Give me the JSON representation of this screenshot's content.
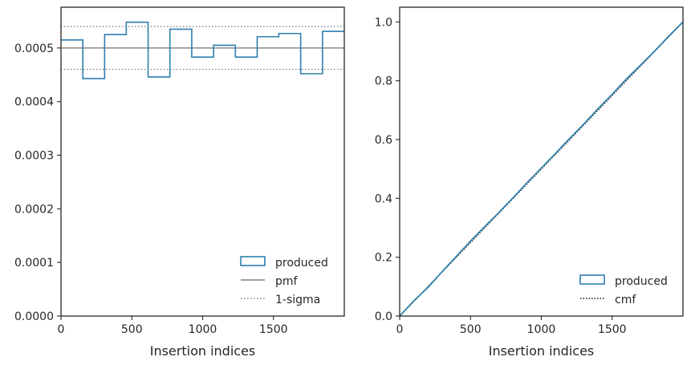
{
  "colors": {
    "produced": "#2f7fb0",
    "pmf": "#808080",
    "sigma": "#808080",
    "cmf": "#1a1a1a",
    "axis": "#262626"
  },
  "chart_data": [
    {
      "type": "histogram-step",
      "xlabel": "Insertion indices",
      "ylabel": "",
      "title": "",
      "xlim": [
        0,
        2000
      ],
      "ylim": [
        0,
        0.000576
      ],
      "xticks": [
        0,
        500,
        1000,
        1500
      ],
      "xtick_labels": [
        "0",
        "500",
        "1000",
        "1500"
      ],
      "yticks": [
        0,
        0.0001,
        0.0002,
        0.0003,
        0.0004,
        0.0005
      ],
      "ytick_labels": [
        "0.0000",
        "0.0001",
        "0.0002",
        "0.0003",
        "0.0004",
        "0.0005"
      ],
      "bin_edges": [
        0,
        154,
        308,
        461,
        615,
        769,
        923,
        1077,
        1231,
        1385,
        1538,
        1692,
        1846,
        2000
      ],
      "series": [
        {
          "name": "produced",
          "style": "step",
          "values": [
            0.000515,
            0.000443,
            0.000525,
            0.000548,
            0.000446,
            0.000535,
            0.000483,
            0.000505,
            0.000483,
            0.000521,
            0.000527,
            0.000452,
            0.000531
          ]
        },
        {
          "name": "pmf",
          "style": "hline",
          "value": 0.0005
        },
        {
          "name": "1-sigma",
          "style": "dotted-hlines",
          "values": [
            0.00046,
            0.00054
          ]
        }
      ],
      "legend": {
        "position": "lower-right",
        "entries": [
          "produced",
          "pmf",
          "1-sigma"
        ]
      },
      "grid": false
    },
    {
      "type": "cumulative-step",
      "xlabel": "Insertion indices",
      "ylabel": "",
      "title": "",
      "xlim": [
        0,
        2000
      ],
      "ylim": [
        0,
        1.05
      ],
      "xticks": [
        0,
        500,
        1000,
        1500
      ],
      "xtick_labels": [
        "0",
        "500",
        "1000",
        "1500"
      ],
      "yticks": [
        0,
        0.2,
        0.4,
        0.6,
        0.8,
        1.0
      ],
      "ytick_labels": [
        "0.0",
        "0.2",
        "0.4",
        "0.6",
        "0.8",
        "1.0"
      ],
      "series": [
        {
          "name": "produced",
          "style": "step",
          "x": [
            0,
            100,
            200,
            300,
            400,
            500,
            600,
            700,
            800,
            900,
            1000,
            1100,
            1200,
            1300,
            1400,
            1500,
            1600,
            1700,
            1800,
            1900,
            2000
          ],
          "values": [
            0,
            0.052,
            0.097,
            0.151,
            0.203,
            0.255,
            0.304,
            0.352,
            0.402,
            0.454,
            0.503,
            0.553,
            0.604,
            0.653,
            0.705,
            0.754,
            0.806,
            0.853,
            0.901,
            0.952,
            1.0
          ]
        },
        {
          "name": "cmf",
          "style": "dotted-line",
          "x": [
            0,
            2000
          ],
          "values": [
            0,
            1.0
          ]
        }
      ],
      "legend": {
        "position": "lower-right",
        "entries": [
          "produced",
          "cmf"
        ]
      },
      "grid": false
    }
  ]
}
